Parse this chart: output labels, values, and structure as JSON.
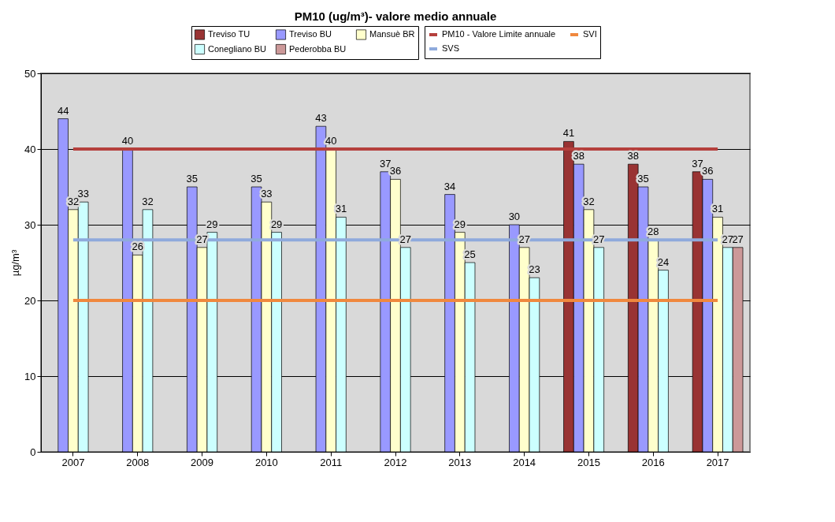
{
  "chart_data": {
    "type": "bar",
    "title": "PM10 (ug/m³)- valore medio annuale",
    "ylabel": "µg/m³",
    "categories": [
      "2007",
      "2008",
      "2009",
      "2010",
      "2011",
      "2012",
      "2013",
      "2014",
      "2015",
      "2016",
      "2017"
    ],
    "series": [
      {
        "name": "Treviso TU",
        "color": "#993333",
        "values": [
          null,
          null,
          null,
          null,
          null,
          null,
          null,
          null,
          41,
          38,
          37
        ]
      },
      {
        "name": "Treviso BU",
        "color": "#9999ff",
        "values": [
          44,
          40,
          35,
          35,
          43,
          37,
          34,
          30,
          38,
          35,
          36
        ]
      },
      {
        "name": "Mansuè BR",
        "color": "#ffffcc",
        "values": [
          32,
          26,
          27,
          33,
          40,
          36,
          29,
          27,
          32,
          28,
          31
        ]
      },
      {
        "name": "Conegliano BU",
        "color": "#ccffff",
        "values": [
          33,
          32,
          29,
          29,
          31,
          27,
          25,
          23,
          27,
          24,
          27
        ]
      },
      {
        "name": "Pederobba BU",
        "color": "#cc9999",
        "values": [
          null,
          null,
          null,
          null,
          null,
          null,
          null,
          null,
          null,
          null,
          27
        ]
      }
    ],
    "ref_lines": [
      {
        "axis": "y",
        "value": 40,
        "label": "PM10 - Valore Limite annuale",
        "color": "#b5403d"
      },
      {
        "axis": "y",
        "value": 20,
        "label": "SVI",
        "color": "#f0883e"
      },
      {
        "axis": "y",
        "value": 28,
        "label": "SVS",
        "color": "#8faadc"
      }
    ],
    "ylim": [
      0,
      50
    ],
    "yticks": [
      0,
      10,
      20,
      30,
      40,
      50
    ],
    "grid": "y",
    "legend": "top",
    "data_labels": true
  }
}
